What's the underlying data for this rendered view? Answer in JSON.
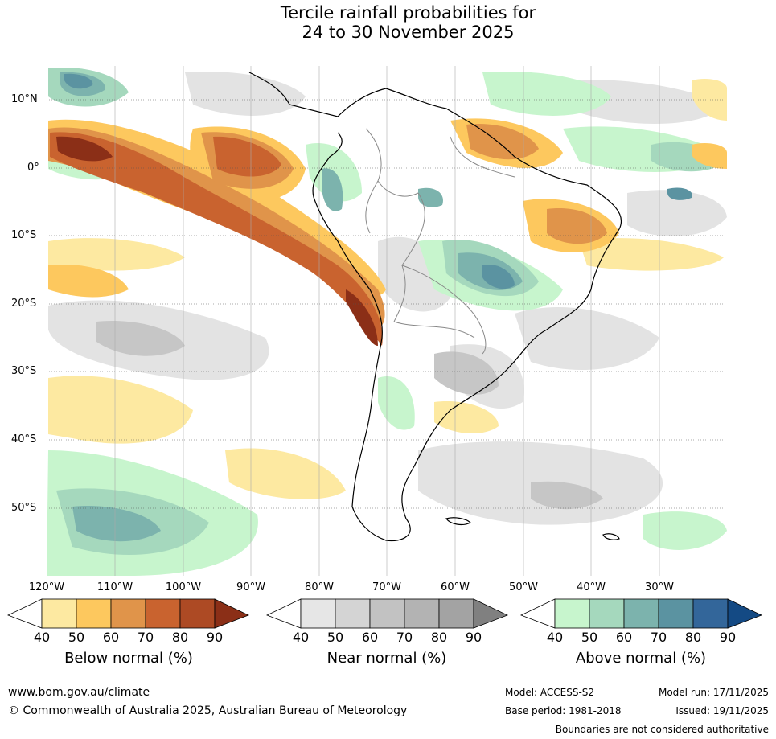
{
  "title": {
    "line1": "Tercile rainfall probabilities for",
    "line2": "24 to 30 November 2025"
  },
  "map": {
    "lat_labels": [
      "10°N",
      "0°",
      "10°S",
      "20°S",
      "30°S",
      "40°S",
      "50°S"
    ],
    "lon_labels": [
      "120°W",
      "110°W",
      "100°W",
      "90°W",
      "80°W",
      "70°W",
      "60°W",
      "50°W",
      "40°W",
      "30°W"
    ]
  },
  "colorbars": [
    {
      "title": "Below normal (%)",
      "ticks": [
        "40",
        "50",
        "60",
        "70",
        "80",
        "90"
      ],
      "colors": [
        "#fde9a1",
        "#fdc85e",
        "#e0944a",
        "#c9632f",
        "#ad4a24",
        "#8b2f17"
      ]
    },
    {
      "title": "Near normal (%)",
      "ticks": [
        "40",
        "50",
        "60",
        "70",
        "80",
        "90"
      ],
      "colors": [
        "#e6e6e6",
        "#d4d4d4",
        "#c2c2c2",
        "#b3b3b3",
        "#a3a3a3",
        "#808080"
      ]
    },
    {
      "title": "Above normal (%)",
      "ticks": [
        "40",
        "50",
        "60",
        "70",
        "80",
        "90"
      ],
      "colors": [
        "#c7f5cd",
        "#a5d8bd",
        "#7cb3ad",
        "#5b93a1",
        "#33669a",
        "#144a84"
      ]
    }
  ],
  "footer": {
    "website": "www.bom.gov.au/climate",
    "copyright": "© Commonwealth of Australia 2025, Australian Bureau of Meteorology",
    "model": "Model: ACCESS-S2",
    "base_period": "Base period: 1981-2018",
    "model_run": "Model run: 17/11/2025",
    "issued": "Issued: 19/11/2025",
    "disclaimer": "Boundaries are not considered authoritative"
  }
}
